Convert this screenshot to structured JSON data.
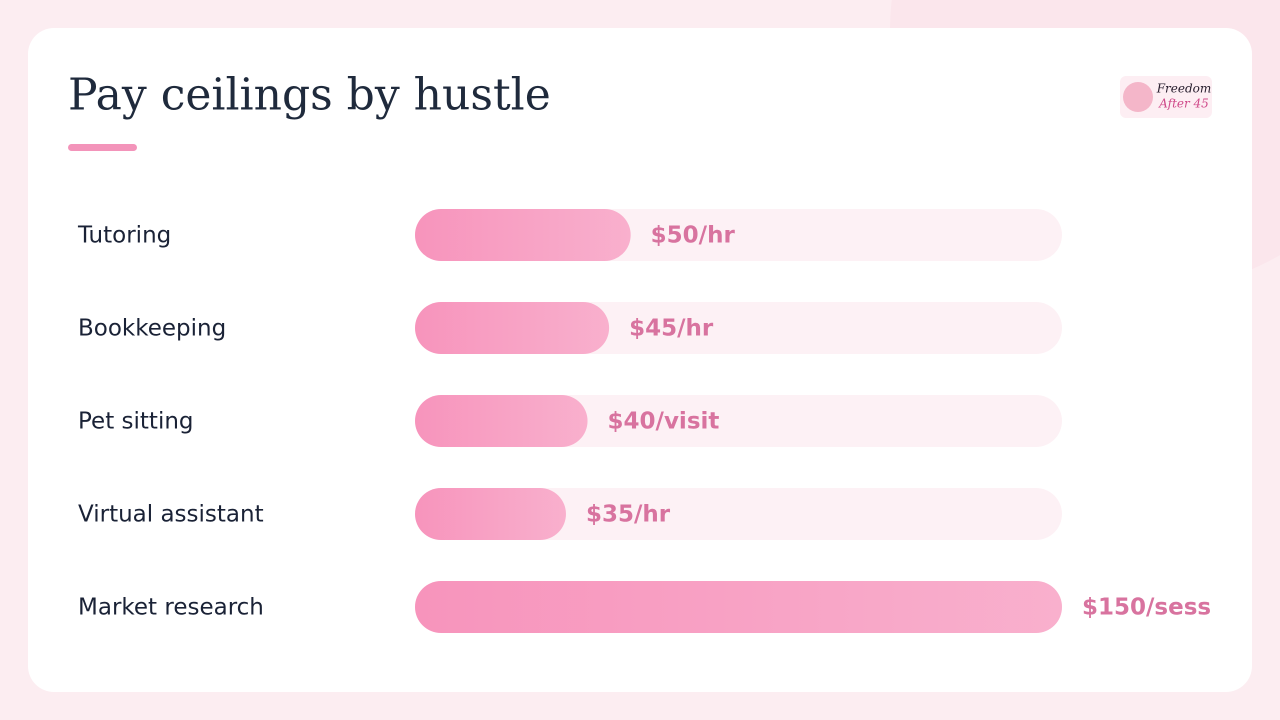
{
  "chart_data": {
    "type": "bar",
    "orientation": "horizontal",
    "title": "Pay ceilings by hustle",
    "categories": [
      "Tutoring",
      "Bookkeeping",
      "Pet sitting",
      "Virtual assistant",
      "Market research"
    ],
    "values": [
      50,
      45,
      40,
      35,
      150
    ],
    "value_labels": [
      "$50/hr",
      "$45/hr",
      "$40/visit",
      "$35/hr",
      "$150/sess"
    ],
    "color": "#f794bc",
    "xlim": [
      0,
      150
    ]
  },
  "logo": [
    "Freedom",
    "After 45"
  ]
}
